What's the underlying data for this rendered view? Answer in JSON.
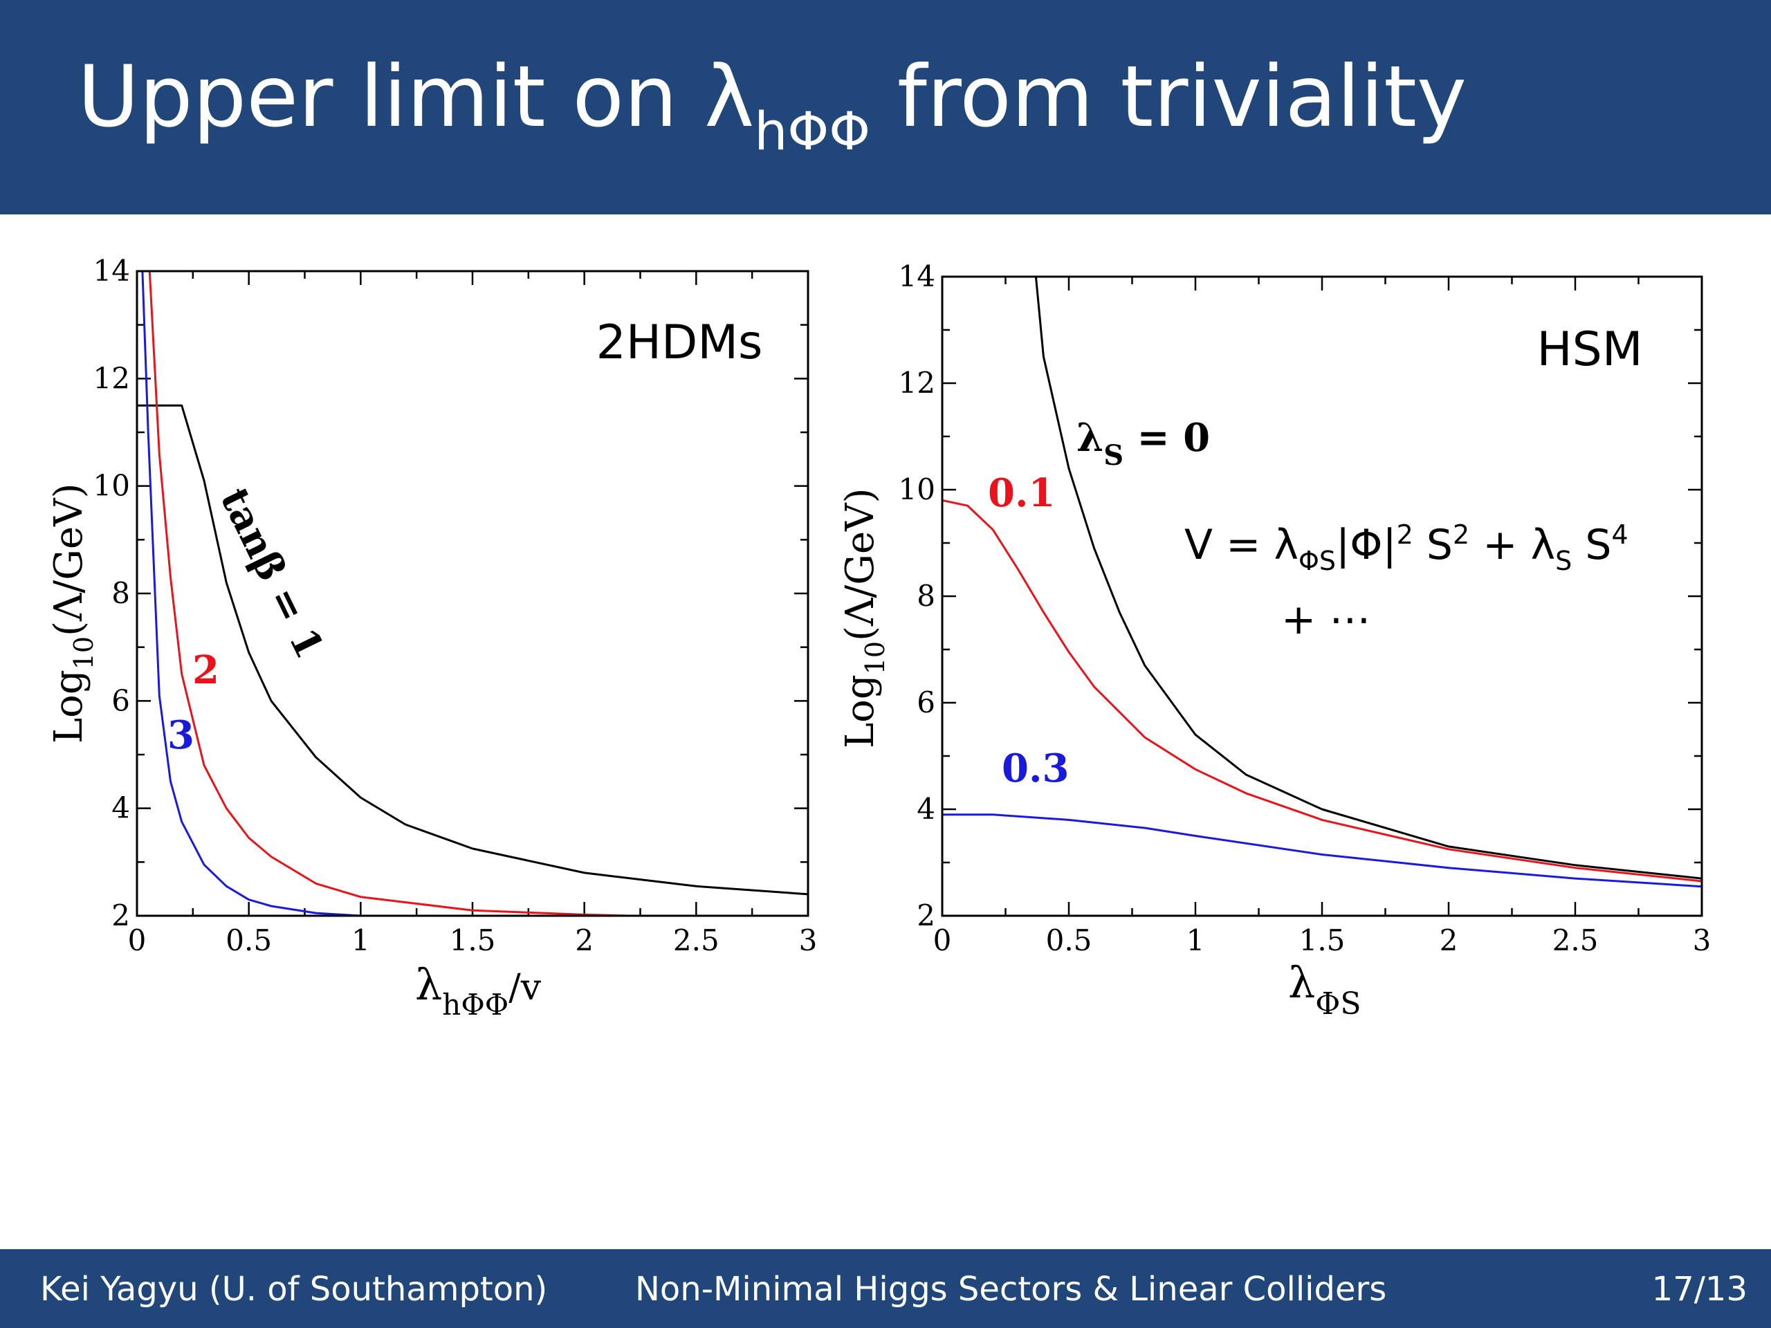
{
  "slide": {
    "title_main": "Upper limit on λ",
    "title_sub": "hΦΦ",
    "title_end": " from triviality"
  },
  "footer": {
    "author": "Kei Yagyu (U. of Southampton)",
    "talk": "Non-Minimal Higgs Sectors & Linear Colliders",
    "page": "17/13"
  },
  "chart_data": [
    {
      "type": "line",
      "panel_label": "2HDMs",
      "xlabel_main": "λ",
      "xlabel_sub": "hΦΦ",
      "xlabel_end": "/v",
      "ylabel_main": "Log",
      "ylabel_sub": "10",
      "ylabel_end": "(Λ/GeV)",
      "xlim": [
        0,
        3
      ],
      "ylim": [
        2,
        14
      ],
      "xticks": [
        "0",
        "0.5",
        "1",
        "1.5",
        "2",
        "2.5",
        "3"
      ],
      "yticks": [
        "2",
        "4",
        "6",
        "8",
        "10",
        "12",
        "14"
      ],
      "series": [
        {
          "name": "tanβ = 1",
          "color": "#000000",
          "x": [
            0,
            0.2,
            0.3,
            0.4,
            0.5,
            0.6,
            0.8,
            1.0,
            1.2,
            1.5,
            2.0,
            2.5,
            3.0
          ],
          "y": [
            11.5,
            11.5,
            10.1,
            8.2,
            6.9,
            6.0,
            4.95,
            4.2,
            3.7,
            3.25,
            2.8,
            2.55,
            2.4
          ]
        },
        {
          "name": "2",
          "color": "#e8141c",
          "x": [
            0.05,
            0.1,
            0.15,
            0.2,
            0.3,
            0.4,
            0.5,
            0.6,
            0.8,
            1.0,
            1.5,
            2.0,
            2.2
          ],
          "y": [
            14.5,
            10.6,
            8.3,
            6.5,
            4.8,
            4.0,
            3.45,
            3.1,
            2.6,
            2.35,
            2.1,
            2.02,
            2.0
          ]
        },
        {
          "name": "3",
          "color": "#1a1adc",
          "x": [
            0.02,
            0.05,
            0.1,
            0.15,
            0.2,
            0.3,
            0.4,
            0.5,
            0.6,
            0.8,
            1.0
          ],
          "y": [
            14.5,
            11.0,
            6.1,
            4.5,
            3.75,
            2.95,
            2.55,
            2.3,
            2.18,
            2.05,
            2.0
          ]
        }
      ]
    },
    {
      "type": "line",
      "panel_label": "HSM",
      "xlabel_main": "λ",
      "xlabel_sub": "ΦS",
      "ylabel_main": "Log",
      "ylabel_sub": "10",
      "ylabel_end": "(Λ/GeV)",
      "xlim": [
        0,
        3
      ],
      "ylim": [
        2,
        14
      ],
      "xticks": [
        "0",
        "0.5",
        "1",
        "1.5",
        "2",
        "2.5",
        "3"
      ],
      "yticks": [
        "2",
        "4",
        "6",
        "8",
        "10",
        "12",
        "14"
      ],
      "formula": {
        "v": "V = λ",
        "sub1": "ΦS",
        "mid": "|Φ|",
        "sup1": "2",
        "mid2": " S",
        "sup2": "2",
        "mid3": " + λ",
        "sub2": "S",
        "mid4": " S",
        "sup3": "4",
        "line2": "+ ⋯"
      },
      "series": [
        {
          "name": "λS = 0",
          "label_main": "λ",
          "label_sub": "S",
          "label_end": " = 0",
          "color": "#000000",
          "x": [
            0.37,
            0.4,
            0.5,
            0.6,
            0.7,
            0.8,
            1.0,
            1.2,
            1.5,
            2.0,
            2.5,
            3.0
          ],
          "y": [
            14.0,
            12.5,
            10.4,
            8.9,
            7.7,
            6.7,
            5.4,
            4.65,
            4.0,
            3.3,
            2.95,
            2.7
          ]
        },
        {
          "name": "0.1",
          "label_main": "0.1",
          "color": "#e8141c",
          "x": [
            0,
            0.1,
            0.2,
            0.3,
            0.4,
            0.5,
            0.6,
            0.8,
            1.0,
            1.2,
            1.5,
            2.0,
            2.5,
            3.0
          ],
          "y": [
            9.8,
            9.7,
            9.25,
            8.5,
            7.7,
            6.95,
            6.3,
            5.35,
            4.75,
            4.3,
            3.8,
            3.25,
            2.9,
            2.65
          ]
        },
        {
          "name": "0.3",
          "label_main": "0.3",
          "color": "#1a1adc",
          "x": [
            0,
            0.2,
            0.5,
            0.8,
            1.0,
            1.5,
            2.0,
            2.5,
            3.0
          ],
          "y": [
            3.9,
            3.9,
            3.8,
            3.65,
            3.5,
            3.15,
            2.9,
            2.7,
            2.55
          ]
        }
      ]
    }
  ]
}
